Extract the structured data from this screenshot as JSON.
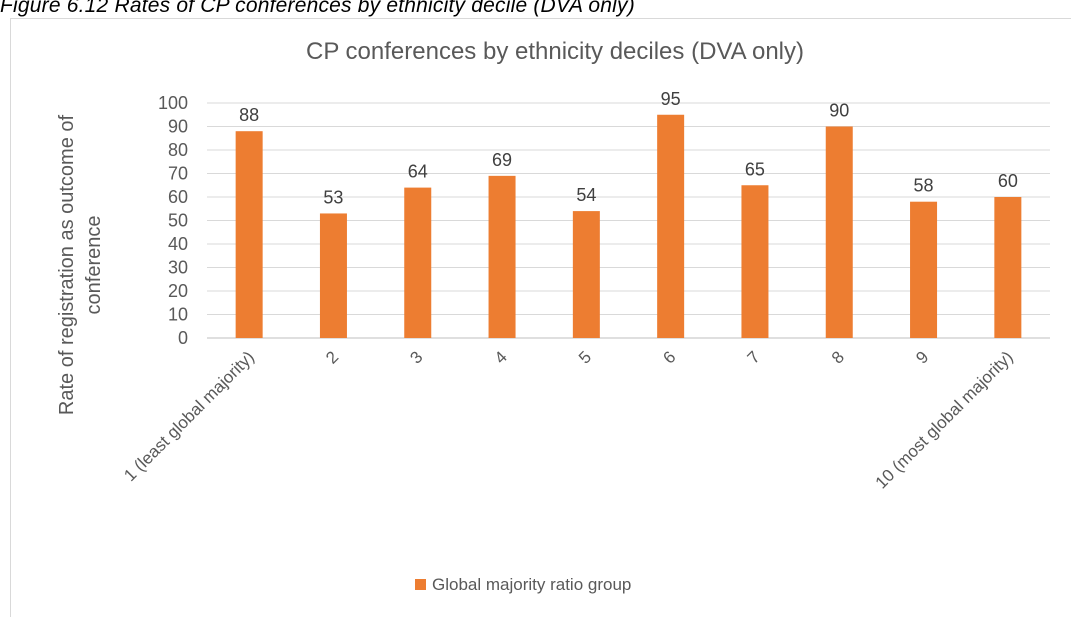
{
  "caption": "Figure 6.12 Rates of CP conferences by ethnicity decile (DVA only)",
  "chart_data": {
    "type": "bar",
    "title": "CP conferences by ethnicity deciles (DVA only)",
    "ylabel_line1": "Rate of registration as outcome of",
    "ylabel_line2": "conference",
    "xlabel": "",
    "categories": [
      "1 (least global majority)",
      "2",
      "3",
      "4",
      "5",
      "6",
      "7",
      "8",
      "9",
      "10 (most global majority)"
    ],
    "series": [
      {
        "name": "Global majority ratio group",
        "values": [
          88,
          53,
          64,
          69,
          54,
          95,
          65,
          90,
          58,
          60
        ],
        "color": "#ed7d31"
      }
    ],
    "data_labels": [
      "88",
      "53",
      "64",
      "69",
      "54",
      "95",
      "65",
      "90",
      "58",
      "60"
    ],
    "ylim": [
      0,
      100
    ],
    "yticks": [
      0,
      10,
      20,
      30,
      40,
      50,
      60,
      70,
      80,
      90,
      100
    ],
    "grid": true,
    "legend_position": "bottom",
    "gridline_color": "#d9d9d9",
    "axis_color": "#bfbfbf"
  }
}
